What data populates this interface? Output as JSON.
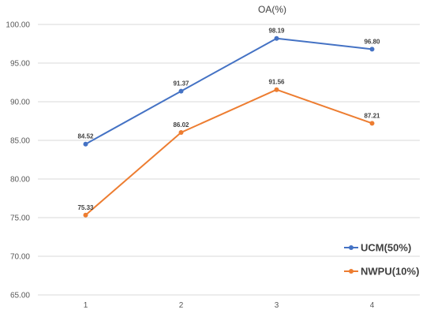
{
  "chart_data": {
    "type": "line",
    "title": "OA(%)",
    "categories": [
      "1",
      "2",
      "3",
      "4"
    ],
    "ylim": [
      65,
      100
    ],
    "yticks": [
      "65.00",
      "70.00",
      "75.00",
      "80.00",
      "85.00",
      "90.00",
      "95.00",
      "100.00"
    ],
    "legend_position": "bottom-right",
    "series": [
      {
        "name": "UCM(50%)",
        "color": "#4472c4",
        "values": [
          84.52,
          91.37,
          98.19,
          96.8
        ],
        "labels": [
          "84.52",
          "91.37",
          "98.19",
          "96.80"
        ]
      },
      {
        "name": "NWPU(10%)",
        "color": "#ed7d31",
        "values": [
          75.33,
          86.02,
          91.56,
          87.21
        ],
        "labels": [
          "75.33",
          "86.02",
          "91.56",
          "87.21"
        ]
      }
    ]
  }
}
